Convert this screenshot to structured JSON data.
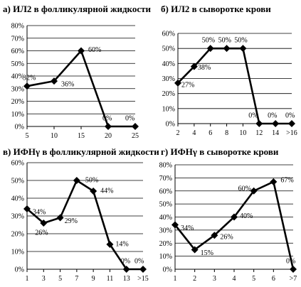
{
  "chart_data": [
    {
      "type": "line",
      "title": "а) ИЛ2 в фолликулярной жидкости",
      "x": [
        "5",
        "10",
        "15",
        "20",
        "25"
      ],
      "series": [
        {
          "values": [
            32,
            36,
            60,
            0,
            0
          ]
        }
      ],
      "data_labels": [
        "32%",
        "36%",
        "60%",
        "0%",
        "0%"
      ],
      "ylim": [
        0,
        80
      ],
      "yticks": [
        "0%",
        "10%",
        "20%",
        "30%",
        "40%",
        "50%",
        "60%",
        "70%",
        "80%"
      ]
    },
    {
      "type": "line",
      "title": "б) ИЛ2 в сыворотке крови",
      "x": [
        "2",
        "4",
        "6",
        "8",
        "10",
        "12",
        "14",
        ">16"
      ],
      "series": [
        {
          "values": [
            27,
            38,
            50,
            50,
            50,
            0,
            0,
            0
          ]
        }
      ],
      "data_labels": [
        "27%",
        "38%",
        "50%",
        "50%",
        "50%",
        "0%",
        "0%",
        "0%"
      ],
      "ylim": [
        0,
        60
      ],
      "yticks": [
        "0%",
        "10%",
        "20%",
        "30%",
        "40%",
        "50%",
        "60%"
      ]
    },
    {
      "type": "line",
      "title": "в) ИФНγ в фолликулярной жидкости",
      "x": [
        "1",
        "3",
        "5",
        "7",
        "9",
        "11",
        "13",
        ">15"
      ],
      "series": [
        {
          "values": [
            34,
            26,
            29,
            50,
            44,
            14,
            0,
            0
          ]
        }
      ],
      "data_labels": [
        "34%",
        "26%",
        "29%",
        "50%",
        "44%",
        "14%",
        "0%",
        "0%"
      ],
      "ylim": [
        0,
        60
      ],
      "yticks": [
        "0%",
        "10%",
        "20%",
        "30%",
        "40%",
        "50%",
        "60%"
      ]
    },
    {
      "type": "line",
      "title": "г) ИФНγ в сыворотке крови",
      "x": [
        "1",
        "2",
        "3",
        "4",
        "5",
        "6",
        ">7"
      ],
      "series": [
        {
          "values": [
            34,
            15,
            26,
            40,
            60,
            67,
            0
          ]
        }
      ],
      "data_labels": [
        "34%",
        "15%",
        "26%",
        "40%",
        "60%",
        "67%",
        "0%"
      ],
      "ylim": [
        0,
        80
      ],
      "yticks": [
        "0%",
        "10%",
        "20%",
        "30%",
        "40%",
        "50%",
        "60%",
        "70%",
        "80%"
      ]
    }
  ]
}
